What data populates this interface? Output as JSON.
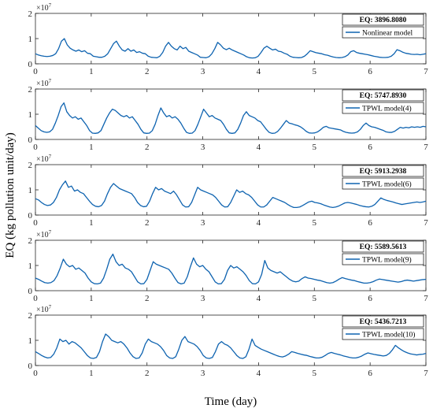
{
  "chart_data": {
    "type": "line",
    "ylabel": "EQ (kg pollution unit/day)",
    "xlabel": "Time (day)",
    "y_exponent": "×10",
    "y_exponent_power": "7",
    "xlim": [
      0,
      7
    ],
    "ylim": [
      0,
      2
    ],
    "x_ticks": [
      "0",
      "1",
      "2",
      "3",
      "4",
      "5",
      "6",
      "7"
    ],
    "y_ticks": [
      "0",
      "1",
      "2"
    ],
    "color": "#0e63b0",
    "panels": [
      {
        "annotation": "EQ: 3896.8080",
        "legend": "Nonlinear model",
        "y": [
          0.4,
          0.35,
          0.32,
          0.3,
          0.29,
          0.3,
          0.33,
          0.4,
          0.6,
          0.9,
          1.0,
          0.75,
          0.62,
          0.55,
          0.5,
          0.55,
          0.48,
          0.52,
          0.42,
          0.4,
          0.3,
          0.28,
          0.26,
          0.26,
          0.3,
          0.4,
          0.6,
          0.8,
          0.9,
          0.7,
          0.55,
          0.5,
          0.6,
          0.5,
          0.55,
          0.45,
          0.48,
          0.42,
          0.4,
          0.3,
          0.26,
          0.25,
          0.24,
          0.3,
          0.45,
          0.7,
          0.85,
          0.7,
          0.6,
          0.55,
          0.7,
          0.6,
          0.65,
          0.5,
          0.45,
          0.4,
          0.35,
          0.26,
          0.25,
          0.24,
          0.28,
          0.4,
          0.6,
          0.85,
          0.75,
          0.62,
          0.56,
          0.62,
          0.55,
          0.5,
          0.45,
          0.4,
          0.35,
          0.28,
          0.24,
          0.23,
          0.24,
          0.3,
          0.45,
          0.62,
          0.7,
          0.62,
          0.55,
          0.58,
          0.5,
          0.48,
          0.42,
          0.38,
          0.3,
          0.26,
          0.25,
          0.24,
          0.25,
          0.3,
          0.4,
          0.52,
          0.48,
          0.44,
          0.42,
          0.4,
          0.36,
          0.34,
          0.3,
          0.27,
          0.25,
          0.24,
          0.25,
          0.28,
          0.35,
          0.48,
          0.52,
          0.45,
          0.42,
          0.4,
          0.38,
          0.36,
          0.33,
          0.3,
          0.28,
          0.26,
          0.25,
          0.25,
          0.26,
          0.3,
          0.4,
          0.56,
          0.52,
          0.46,
          0.42,
          0.4,
          0.38,
          0.37,
          0.38,
          0.36,
          0.38,
          0.4
        ]
      },
      {
        "annotation": "EQ: 5747.8930",
        "legend": "TPWL model(4)",
        "y": [
          0.55,
          0.45,
          0.35,
          0.3,
          0.28,
          0.3,
          0.4,
          0.65,
          0.95,
          1.3,
          1.45,
          1.1,
          0.95,
          0.85,
          0.9,
          0.8,
          0.85,
          0.7,
          0.55,
          0.35,
          0.25,
          0.24,
          0.26,
          0.35,
          0.6,
          0.85,
          1.05,
          1.2,
          1.15,
          1.05,
          0.95,
          0.9,
          0.95,
          0.85,
          0.9,
          0.75,
          0.6,
          0.4,
          0.26,
          0.24,
          0.25,
          0.35,
          0.6,
          0.95,
          1.25,
          1.05,
          0.9,
          0.95,
          0.85,
          0.9,
          0.8,
          0.65,
          0.45,
          0.28,
          0.24,
          0.25,
          0.35,
          0.6,
          0.9,
          1.2,
          1.05,
          0.9,
          0.95,
          0.85,
          0.8,
          0.75,
          0.6,
          0.4,
          0.26,
          0.24,
          0.26,
          0.4,
          0.65,
          0.95,
          1.1,
          0.95,
          0.9,
          0.85,
          0.75,
          0.7,
          0.55,
          0.4,
          0.28,
          0.24,
          0.25,
          0.32,
          0.45,
          0.6,
          0.75,
          0.65,
          0.62,
          0.58,
          0.55,
          0.5,
          0.42,
          0.32,
          0.26,
          0.25,
          0.26,
          0.3,
          0.38,
          0.48,
          0.52,
          0.46,
          0.44,
          0.42,
          0.4,
          0.38,
          0.32,
          0.28,
          0.26,
          0.25,
          0.26,
          0.3,
          0.4,
          0.55,
          0.65,
          0.55,
          0.5,
          0.48,
          0.44,
          0.4,
          0.36,
          0.3,
          0.28,
          0.28,
          0.32,
          0.4,
          0.48,
          0.45,
          0.48,
          0.46,
          0.5,
          0.48,
          0.5,
          0.48,
          0.52,
          0.5
        ]
      },
      {
        "annotation": "EQ: 5913.2938",
        "legend": "TPWL model(6)",
        "y": [
          0.65,
          0.6,
          0.5,
          0.42,
          0.38,
          0.4,
          0.5,
          0.7,
          1.0,
          1.2,
          1.35,
          1.1,
          1.15,
          0.95,
          1.0,
          0.9,
          0.85,
          0.7,
          0.55,
          0.42,
          0.35,
          0.33,
          0.38,
          0.55,
          0.85,
          1.1,
          1.25,
          1.15,
          1.05,
          1.0,
          0.95,
          0.9,
          0.85,
          0.7,
          0.5,
          0.38,
          0.33,
          0.35,
          0.55,
          0.85,
          1.1,
          1.0,
          1.05,
          0.95,
          0.9,
          0.85,
          0.95,
          0.8,
          0.6,
          0.4,
          0.32,
          0.33,
          0.5,
          0.8,
          1.1,
          1.0,
          0.95,
          0.9,
          0.85,
          0.8,
          0.7,
          0.55,
          0.4,
          0.32,
          0.33,
          0.5,
          0.75,
          1.0,
          0.9,
          0.95,
          0.85,
          0.8,
          0.7,
          0.55,
          0.4,
          0.32,
          0.32,
          0.4,
          0.55,
          0.7,
          0.65,
          0.6,
          0.55,
          0.5,
          0.42,
          0.35,
          0.3,
          0.3,
          0.32,
          0.38,
          0.45,
          0.52,
          0.55,
          0.5,
          0.48,
          0.45,
          0.4,
          0.36,
          0.32,
          0.3,
          0.32,
          0.36,
          0.42,
          0.48,
          0.5,
          0.48,
          0.45,
          0.42,
          0.38,
          0.35,
          0.33,
          0.32,
          0.35,
          0.42,
          0.55,
          0.68,
          0.62,
          0.58,
          0.55,
          0.52,
          0.48,
          0.45,
          0.42,
          0.44,
          0.46,
          0.48,
          0.5,
          0.52,
          0.5,
          0.52,
          0.55
        ]
      },
      {
        "annotation": "EQ: 5589.5613",
        "legend": "TPWL model(9)",
        "y": [
          0.5,
          0.45,
          0.38,
          0.32,
          0.3,
          0.32,
          0.4,
          0.6,
          0.9,
          1.25,
          1.05,
          0.95,
          1.0,
          0.85,
          0.9,
          0.8,
          0.7,
          0.5,
          0.35,
          0.28,
          0.27,
          0.3,
          0.5,
          0.85,
          1.25,
          1.45,
          1.15,
          1.0,
          1.05,
          0.9,
          0.85,
          0.75,
          0.55,
          0.35,
          0.27,
          0.28,
          0.45,
          0.8,
          1.15,
          1.05,
          1.0,
          0.95,
          0.9,
          0.85,
          0.7,
          0.5,
          0.32,
          0.27,
          0.3,
          0.55,
          0.95,
          1.3,
          1.05,
          0.95,
          1.0,
          0.85,
          0.75,
          0.55,
          0.35,
          0.27,
          0.28,
          0.45,
          0.8,
          1.0,
          0.9,
          0.95,
          0.85,
          0.75,
          0.6,
          0.4,
          0.28,
          0.27,
          0.35,
          0.65,
          1.2,
          0.9,
          0.8,
          0.75,
          0.7,
          0.75,
          0.65,
          0.55,
          0.45,
          0.38,
          0.35,
          0.38,
          0.48,
          0.55,
          0.5,
          0.48,
          0.45,
          0.42,
          0.4,
          0.36,
          0.32,
          0.3,
          0.32,
          0.38,
          0.46,
          0.52,
          0.48,
          0.45,
          0.42,
          0.4,
          0.36,
          0.33,
          0.3,
          0.3,
          0.32,
          0.36,
          0.42,
          0.46,
          0.44,
          0.42,
          0.4,
          0.38,
          0.36,
          0.34,
          0.36,
          0.4,
          0.42,
          0.4,
          0.38,
          0.4,
          0.42,
          0.44,
          0.45
        ]
      },
      {
        "annotation": "EQ: 5436.7213",
        "legend": "TPWL model(10)",
        "y": [
          0.55,
          0.48,
          0.4,
          0.34,
          0.3,
          0.32,
          0.45,
          0.7,
          1.05,
          0.95,
          1.0,
          0.85,
          0.95,
          0.9,
          0.8,
          0.7,
          0.55,
          0.4,
          0.3,
          0.28,
          0.32,
          0.55,
          0.95,
          1.25,
          1.15,
          1.0,
          0.95,
          0.9,
          0.95,
          0.85,
          0.7,
          0.5,
          0.35,
          0.28,
          0.3,
          0.5,
          0.85,
          1.05,
          0.95,
          0.9,
          0.85,
          0.75,
          0.6,
          0.4,
          0.3,
          0.28,
          0.35,
          0.65,
          1.0,
          1.15,
          0.95,
          0.9,
          0.85,
          0.75,
          0.6,
          0.4,
          0.3,
          0.28,
          0.32,
          0.55,
          0.85,
          0.95,
          0.85,
          0.8,
          0.7,
          0.55,
          0.4,
          0.3,
          0.28,
          0.35,
          0.65,
          1.05,
          0.8,
          0.72,
          0.65,
          0.6,
          0.55,
          0.5,
          0.45,
          0.4,
          0.36,
          0.34,
          0.38,
          0.45,
          0.55,
          0.52,
          0.48,
          0.45,
          0.42,
          0.4,
          0.36,
          0.33,
          0.3,
          0.3,
          0.33,
          0.4,
          0.48,
          0.52,
          0.48,
          0.45,
          0.42,
          0.38,
          0.35,
          0.32,
          0.3,
          0.3,
          0.33,
          0.38,
          0.45,
          0.5,
          0.47,
          0.44,
          0.42,
          0.4,
          0.38,
          0.4,
          0.48,
          0.62,
          0.8,
          0.7,
          0.62,
          0.55,
          0.5,
          0.46,
          0.44,
          0.42,
          0.44,
          0.45,
          0.48
        ]
      }
    ]
  }
}
